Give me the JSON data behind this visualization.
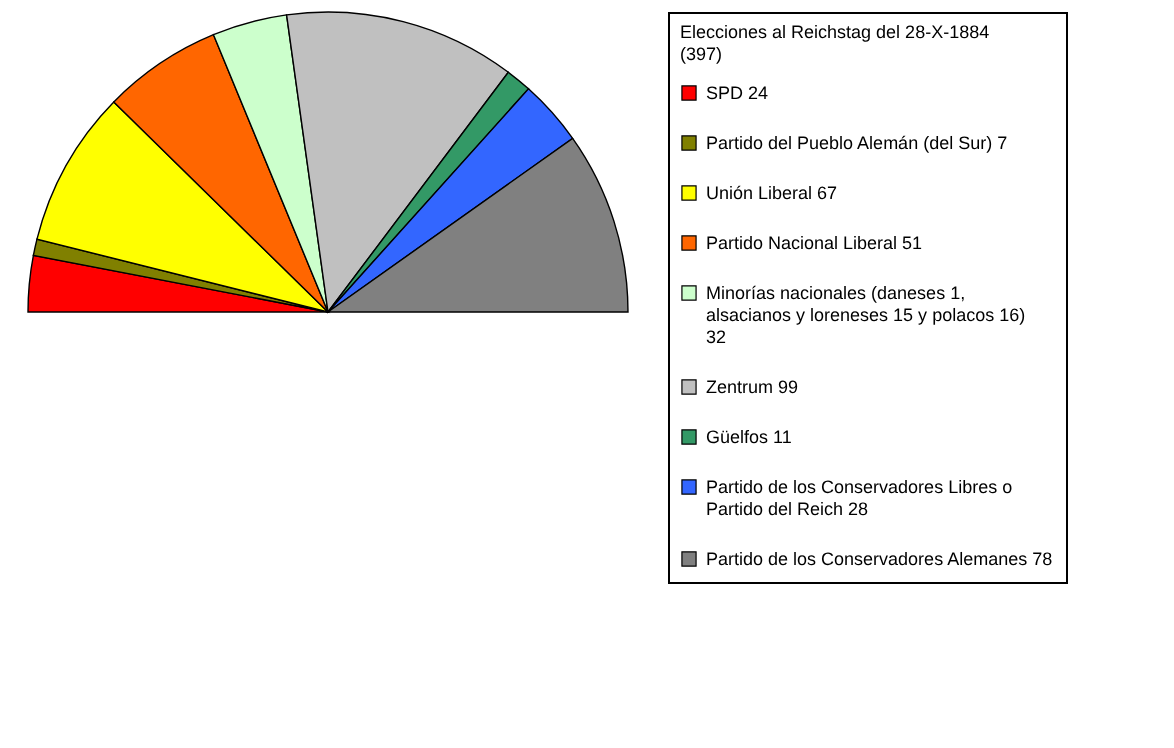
{
  "chart_data": {
    "type": "pie",
    "legend_title": "Elecciones al Reichstag del 28-X-1884 (397)",
    "legend": "right",
    "categories": [
      "SPD 24",
      "Partido del Pueblo Alemán (del Sur) 7",
      "Unión Liberal 67",
      "Partido Nacional Liberal 51",
      "Minorías nacionales (daneses 1, alsacianos y loreneses 15 y polacos 16) 32",
      "Zentrum 99",
      "Güelfos 11",
      "Partido de los Conservadores Libres o Partido del Reich 28",
      "Partido de los Conservadores Alemanes 78"
    ],
    "values": [
      24,
      7,
      67,
      51,
      32,
      99,
      11,
      28,
      78
    ],
    "colors": [
      "#ff0000",
      "#808000",
      "#ffff00",
      "#ff6600",
      "#ccffcc",
      "#c0c0c0",
      "#339966",
      "#3366ff",
      "#808080"
    ]
  }
}
